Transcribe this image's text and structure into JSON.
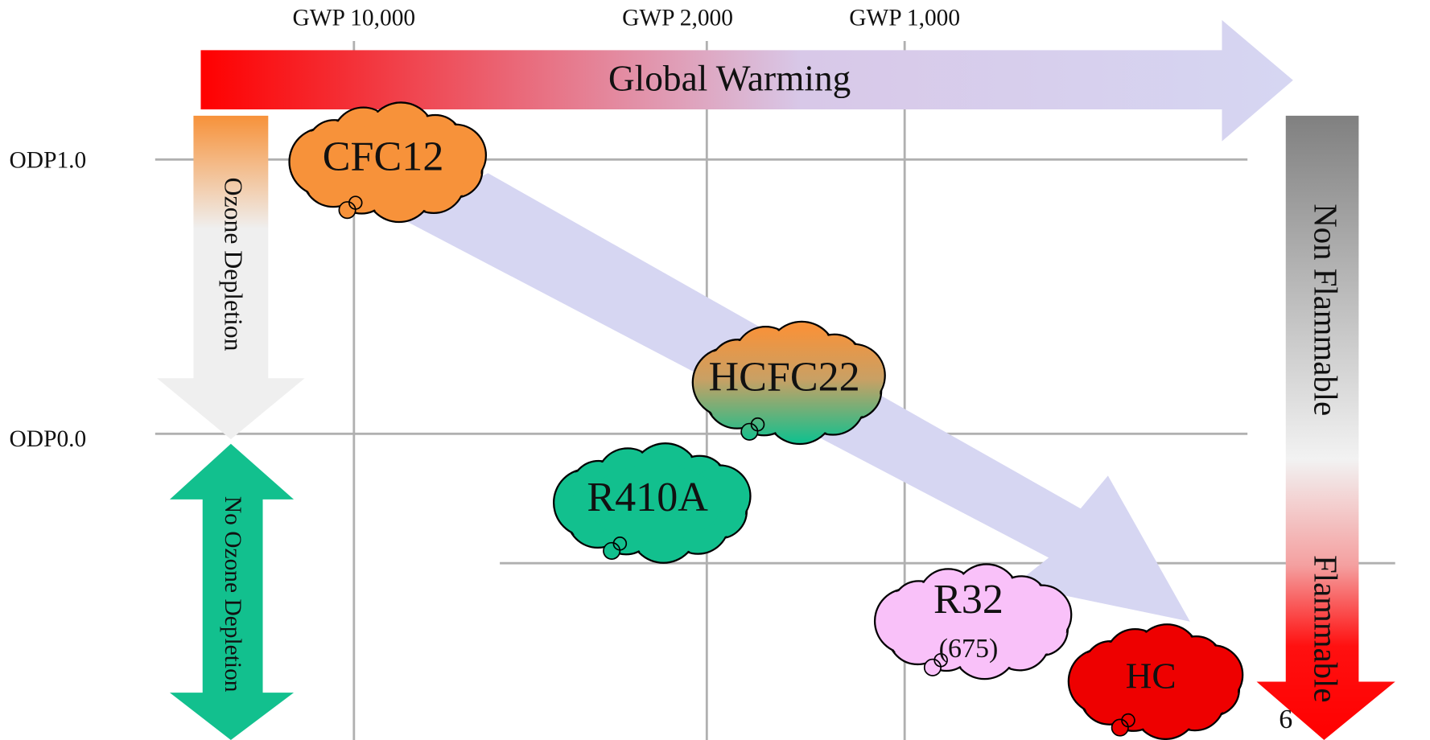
{
  "axes": {
    "x_labels": [
      "GWP 10,000",
      "GWP 2,000",
      "GWP 1,000"
    ],
    "y_labels": [
      "ODP1.0",
      "ODP0.0"
    ]
  },
  "arrows": {
    "global_warming": "Global Warming",
    "ozone_depletion": "Ozone Depletion",
    "no_ozone_depletion": "No Ozone Depletion",
    "non_flammable": "Non Flammable",
    "flammable": "Flammable"
  },
  "refrigerants": [
    {
      "name": "CFC12"
    },
    {
      "name": "HCFC22"
    },
    {
      "name": "R410A"
    },
    {
      "name": "R32",
      "note": "(675)"
    },
    {
      "name": "HC"
    }
  ],
  "page_number": "6"
}
